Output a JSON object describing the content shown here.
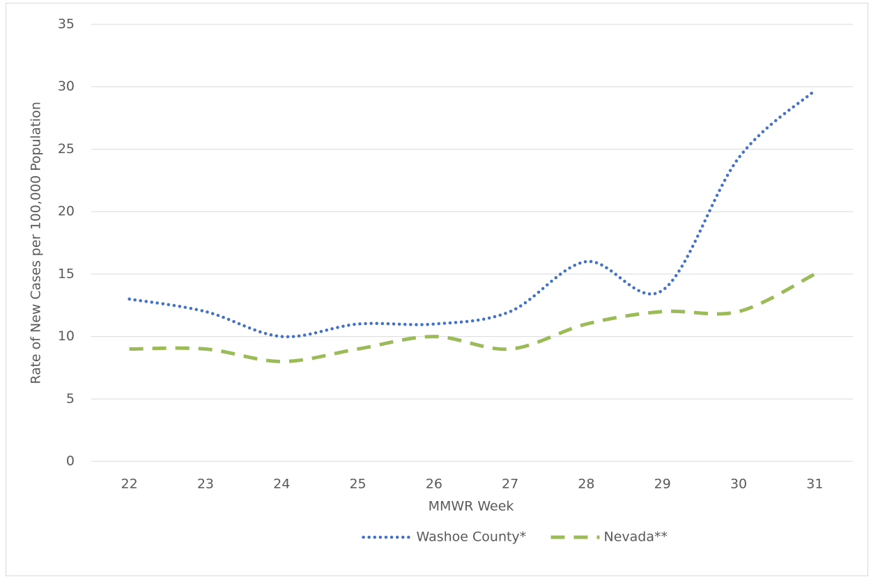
{
  "chart_data": {
    "type": "line",
    "x_label": "MMWR Week",
    "y_label": "Rate of New Cases per 100,000 Population",
    "categories": [
      "22",
      "23",
      "24",
      "25",
      "26",
      "27",
      "28",
      "29",
      "30",
      "31"
    ],
    "series": [
      {
        "name": "Washoe County*",
        "color": "#4472c4",
        "style": "dotted",
        "values": [
          13,
          12,
          10,
          11,
          11,
          12,
          16,
          13.7,
          24.3,
          29.7
        ]
      },
      {
        "name": "Nevada**",
        "color": "#9bbb59",
        "style": "dashed",
        "values": [
          9,
          9,
          8,
          9,
          10,
          9,
          11,
          12,
          12,
          15
        ]
      }
    ],
    "ylim": [
      0,
      35
    ],
    "yticks": [
      0,
      5,
      10,
      15,
      20,
      25,
      30,
      35
    ],
    "grid": true,
    "smooth": true,
    "legend": "bottom"
  }
}
